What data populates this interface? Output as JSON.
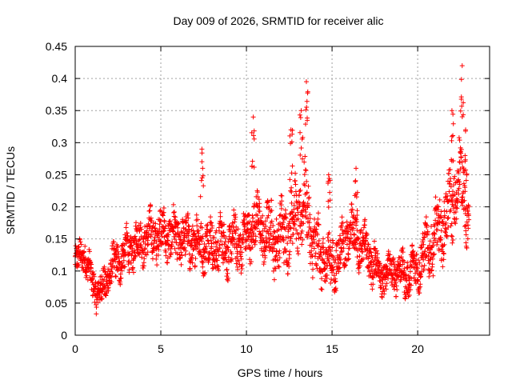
{
  "chart_data": {
    "type": "scatter",
    "title": "Day 009 of 2026, SRMTID for receiver alic",
    "xlabel": "GPS time / hours",
    "ylabel": "SRMTID / TECUs",
    "xlim": [
      0,
      24.2
    ],
    "ylim": [
      0,
      0.45
    ],
    "xticks": [
      0,
      5,
      10,
      15,
      20
    ],
    "xtick_labels": [
      "0",
      "5",
      "10",
      "15",
      "20"
    ],
    "yticks": [
      0,
      0.05,
      0.1,
      0.15,
      0.2,
      0.25,
      0.3,
      0.35,
      0.4,
      0.45
    ],
    "ytick_labels": [
      "0",
      "0.05",
      "0.1",
      "0.15",
      "0.2",
      "0.25",
      "0.3",
      "0.35",
      "0.4",
      "0.45"
    ],
    "grid": true,
    "marker": "+",
    "color": "#ff0000",
    "series": [
      {
        "name": "SRMTID",
        "x_range": [
          0,
          23.0
        ],
        "sample_interval_hours": 0.01,
        "trend": [
          {
            "x": 0.0,
            "y": 0.11
          },
          {
            "x": 0.5,
            "y": 0.13
          },
          {
            "x": 1.0,
            "y": 0.08
          },
          {
            "x": 1.5,
            "y": 0.065
          },
          {
            "x": 2.0,
            "y": 0.1
          },
          {
            "x": 2.5,
            "y": 0.115
          },
          {
            "x": 3.0,
            "y": 0.13
          },
          {
            "x": 4.0,
            "y": 0.15
          },
          {
            "x": 5.0,
            "y": 0.16
          },
          {
            "x": 6.0,
            "y": 0.15
          },
          {
            "x": 7.0,
            "y": 0.145
          },
          {
            "x": 8.0,
            "y": 0.14
          },
          {
            "x": 9.0,
            "y": 0.14
          },
          {
            "x": 10.0,
            "y": 0.15
          },
          {
            "x": 10.5,
            "y": 0.18
          },
          {
            "x": 11.0,
            "y": 0.16
          },
          {
            "x": 12.0,
            "y": 0.15
          },
          {
            "x": 12.5,
            "y": 0.17
          },
          {
            "x": 13.0,
            "y": 0.19
          },
          {
            "x": 13.5,
            "y": 0.2
          },
          {
            "x": 14.0,
            "y": 0.13
          },
          {
            "x": 15.0,
            "y": 0.11
          },
          {
            "x": 15.5,
            "y": 0.13
          },
          {
            "x": 16.0,
            "y": 0.16
          },
          {
            "x": 16.5,
            "y": 0.15
          },
          {
            "x": 17.0,
            "y": 0.13
          },
          {
            "x": 18.0,
            "y": 0.09
          },
          {
            "x": 18.5,
            "y": 0.1
          },
          {
            "x": 19.0,
            "y": 0.1
          },
          {
            "x": 19.5,
            "y": 0.09
          },
          {
            "x": 20.0,
            "y": 0.11
          },
          {
            "x": 21.0,
            "y": 0.15
          },
          {
            "x": 22.0,
            "y": 0.2
          },
          {
            "x": 22.5,
            "y": 0.25
          },
          {
            "x": 23.0,
            "y": 0.17
          }
        ],
        "spread": [
          {
            "x": 0.0,
            "s": 0.03
          },
          {
            "x": 5.0,
            "s": 0.045
          },
          {
            "x": 10.0,
            "s": 0.05
          },
          {
            "x": 13.5,
            "s": 0.07
          },
          {
            "x": 15.0,
            "s": 0.05
          },
          {
            "x": 19.0,
            "s": 0.035
          },
          {
            "x": 22.5,
            "s": 0.07
          },
          {
            "x": 23.0,
            "s": 0.05
          }
        ],
        "peaks": [
          {
            "x": 7.4,
            "y": 0.29
          },
          {
            "x": 10.4,
            "y": 0.34
          },
          {
            "x": 12.6,
            "y": 0.32
          },
          {
            "x": 13.2,
            "y": 0.35
          },
          {
            "x": 13.5,
            "y": 0.395
          },
          {
            "x": 14.8,
            "y": 0.25
          },
          {
            "x": 16.4,
            "y": 0.26
          },
          {
            "x": 22.0,
            "y": 0.35
          },
          {
            "x": 22.6,
            "y": 0.42
          },
          {
            "x": 22.8,
            "y": 0.32
          }
        ]
      }
    ]
  }
}
